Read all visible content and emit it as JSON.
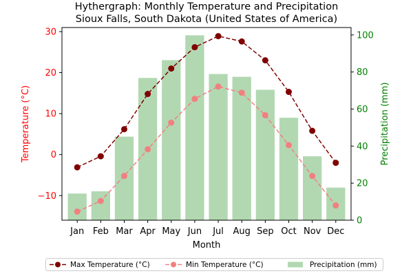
{
  "chart_data": {
    "type": "bar+line",
    "title": "Hythergraph: Monthly Temperature and Precipitation",
    "subtitle": "Sioux Falls, South Dakota (United States of America)",
    "xlabel": "Month",
    "ylabel_left": "Temperature (°C)",
    "ylabel_right": "Precipitation (mm)",
    "categories": [
      "Jan",
      "Feb",
      "Mar",
      "Apr",
      "May",
      "Jun",
      "Jul",
      "Aug",
      "Sep",
      "Oct",
      "Nov",
      "Dec"
    ],
    "ylim_left": [
      -16,
      31
    ],
    "ylim_right": [
      0,
      104
    ],
    "yticks_left": [
      -10,
      0,
      10,
      20,
      30
    ],
    "yticks_right": [
      0,
      20,
      40,
      60,
      80,
      100
    ],
    "grid": false,
    "legend_position": "bottom",
    "series": [
      {
        "name": "Max Temperature (°C)",
        "kind": "line",
        "axis": "left",
        "style": "dashed",
        "color": "#800000",
        "values": [
          -3.1,
          -0.4,
          6.2,
          14.8,
          21.0,
          26.2,
          28.9,
          27.6,
          23.0,
          15.3,
          5.8,
          -2.0
        ]
      },
      {
        "name": "Min Temperature (°C)",
        "kind": "line",
        "axis": "left",
        "style": "dashed",
        "color": "#f08080",
        "values": [
          -13.9,
          -11.3,
          -5.2,
          1.3,
          7.8,
          13.6,
          16.6,
          15.1,
          9.6,
          2.3,
          -5.2,
          -12.4
        ]
      },
      {
        "name": "Precipitation (mm)",
        "kind": "bar",
        "axis": "right",
        "color": "#b2d8b2",
        "values": [
          14.4,
          15.6,
          45.1,
          76.8,
          86.4,
          99.8,
          78.9,
          77.4,
          70.4,
          55.3,
          34.5,
          17.6
        ]
      }
    ]
  }
}
